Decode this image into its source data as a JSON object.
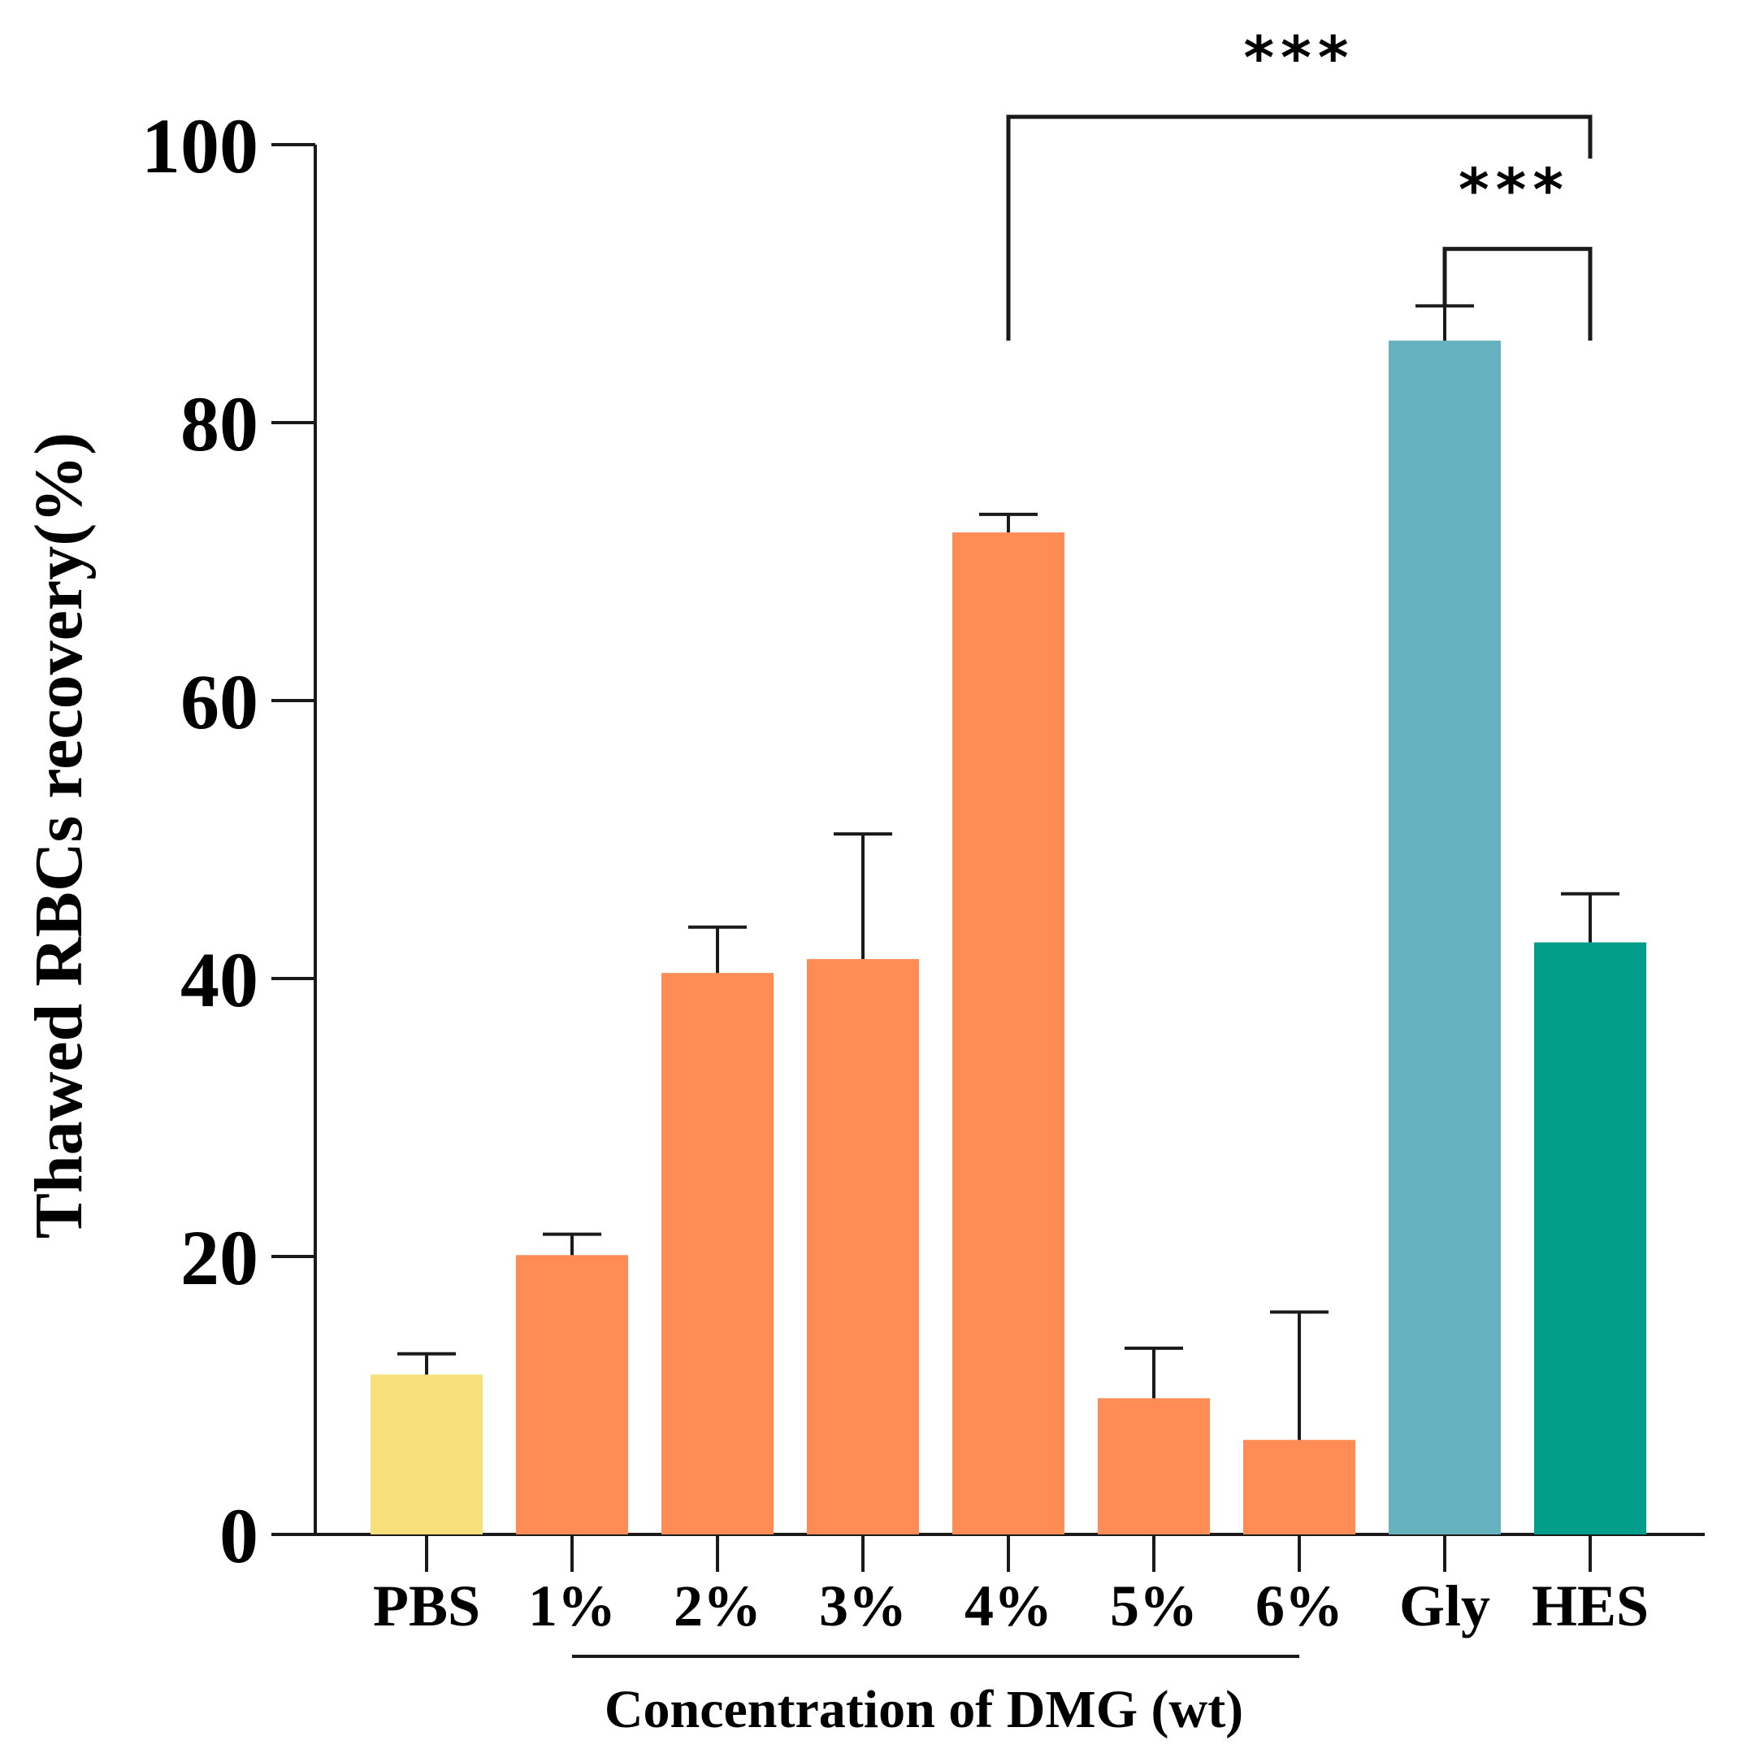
{
  "chart_data": {
    "type": "bar",
    "title": "",
    "ylabel": "Thawed RBCs recovery(%)",
    "xlabel": "",
    "ylim": [
      0,
      100
    ],
    "yticks": [
      "0",
      "20",
      "40",
      "60",
      "80",
      "100"
    ],
    "categories": [
      "PBS",
      "1%",
      "2%",
      "3%",
      "4%",
      "5%",
      "6%",
      "Gly",
      "HES"
    ],
    "values": [
      11.5,
      20.1,
      40.4,
      41.4,
      72.1,
      9.8,
      6.8,
      85.9,
      42.6
    ],
    "errors": [
      1.5,
      1.5,
      3.3,
      9.0,
      1.3,
      3.6,
      9.2,
      2.5,
      3.5
    ],
    "colors": [
      "#F7DF7C",
      "#FF8C55",
      "#FF8C55",
      "#FF8C55",
      "#FF8C55",
      "#FF8C55",
      "#FF8C55",
      "#66B1BE",
      "#009E8A"
    ],
    "group_label": "Concentration of DMG (wt)",
    "group_span": [
      "1%",
      "6%"
    ],
    "significance": [
      {
        "from": "4%",
        "to": "HES",
        "label": "***",
        "level": 102
      },
      {
        "from": "Gly",
        "to": "HES",
        "label": "***",
        "level": 92.5
      }
    ]
  }
}
